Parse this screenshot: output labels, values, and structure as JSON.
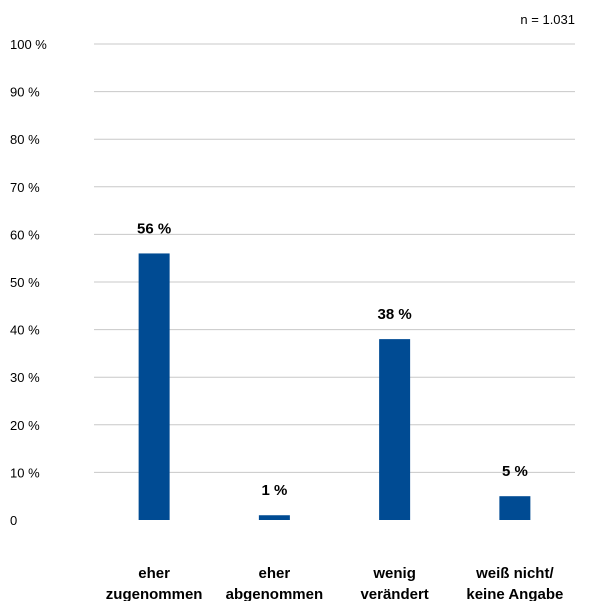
{
  "chart_data": {
    "type": "bar",
    "note": "n = 1.031",
    "categories": [
      [
        "eher",
        "zugenommen"
      ],
      [
        "eher",
        "abgenommen"
      ],
      [
        "wenig",
        "verändert"
      ],
      [
        "weiß nicht/",
        "keine Angabe"
      ]
    ],
    "values": [
      56,
      1,
      38,
      5
    ],
    "value_labels": [
      "56 %",
      "1 %",
      "38 %",
      "5 %"
    ],
    "y_ticks": [
      0,
      10,
      20,
      30,
      40,
      50,
      60,
      70,
      80,
      90,
      100
    ],
    "y_tick_labels": [
      "0",
      "10 %",
      "20 %",
      "30 %",
      "40 %",
      "50 %",
      "60 %",
      "70 %",
      "80 %",
      "90 %",
      "100 %"
    ],
    "ylim": [
      0,
      100
    ],
    "grid": true,
    "bar_color": "#004b93",
    "grid_color": "#c8c8c8"
  }
}
